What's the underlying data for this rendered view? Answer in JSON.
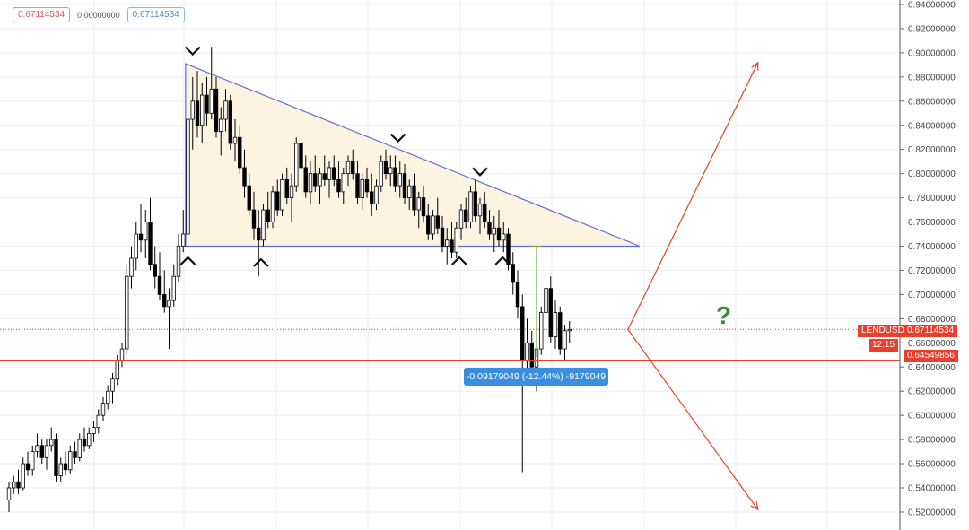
{
  "legend": {
    "value_1": "0.67114534",
    "value_2": "0.00000000",
    "value_3": "0.67114534"
  },
  "price_axis": {
    "symbol_tag": "LENDUSD",
    "last_price_tag": "0.67114534",
    "countdown_tag": "12:15",
    "line_price_tag": "0.64549856"
  },
  "measure_label": "-0.09179049 (-12.44%) -9179049",
  "question_mark": "?",
  "colors": {
    "up": "#ffffff",
    "down": "#000000",
    "outline": "#000000",
    "triangle_stroke": "#5b6fd6",
    "triangle_fill": "#fdf3e1",
    "support_line": "#e8402f",
    "arrows": "#e8402f",
    "question": "#3d8b2f",
    "measure_line": "#6aa84f",
    "tag": "#e8402f",
    "measure_box": "#3a8ee0"
  },
  "chart_data": {
    "type": "candlestick",
    "symbol": "LENDUSD",
    "ylim": [
      0.51,
      0.945
    ],
    "y_ticks": [
      "0.94000000",
      "0.92000000",
      "0.90000000",
      "0.88000000",
      "0.86000000",
      "0.84000000",
      "0.82000000",
      "0.80000000",
      "0.78000000",
      "0.76000000",
      "0.74000000",
      "0.72000000",
      "0.70000000",
      "0.68000000",
      "0.66000000",
      "0.64000000",
      "0.62000000",
      "0.60000000",
      "0.58000000",
      "0.56000000",
      "0.54000000",
      "0.52000000"
    ],
    "grid": true,
    "candles_ohlc": [
      [
        0.53,
        0.545,
        0.52,
        0.54
      ],
      [
        0.54,
        0.55,
        0.535,
        0.545
      ],
      [
        0.545,
        0.555,
        0.535,
        0.54
      ],
      [
        0.54,
        0.565,
        0.538,
        0.56
      ],
      [
        0.56,
        0.57,
        0.55,
        0.555
      ],
      [
        0.555,
        0.575,
        0.55,
        0.57
      ],
      [
        0.57,
        0.585,
        0.565,
        0.575
      ],
      [
        0.575,
        0.58,
        0.56,
        0.565
      ],
      [
        0.565,
        0.58,
        0.555,
        0.575
      ],
      [
        0.575,
        0.59,
        0.57,
        0.58
      ],
      [
        0.58,
        0.585,
        0.545,
        0.55
      ],
      [
        0.55,
        0.565,
        0.545,
        0.56
      ],
      [
        0.56,
        0.57,
        0.55,
        0.555
      ],
      [
        0.555,
        0.575,
        0.552,
        0.57
      ],
      [
        0.57,
        0.578,
        0.56,
        0.565
      ],
      [
        0.565,
        0.585,
        0.562,
        0.58
      ],
      [
        0.58,
        0.59,
        0.57,
        0.575
      ],
      [
        0.575,
        0.59,
        0.572,
        0.585
      ],
      [
        0.585,
        0.595,
        0.578,
        0.59
      ],
      [
        0.59,
        0.605,
        0.585,
        0.6
      ],
      [
        0.6,
        0.615,
        0.595,
        0.61
      ],
      [
        0.61,
        0.625,
        0.605,
        0.62
      ],
      [
        0.62,
        0.635,
        0.61,
        0.63
      ],
      [
        0.63,
        0.65,
        0.625,
        0.645
      ],
      [
        0.645,
        0.66,
        0.64,
        0.655
      ],
      [
        0.655,
        0.725,
        0.65,
        0.715
      ],
      [
        0.715,
        0.74,
        0.705,
        0.73
      ],
      [
        0.73,
        0.76,
        0.72,
        0.75
      ],
      [
        0.75,
        0.775,
        0.735,
        0.745
      ],
      [
        0.745,
        0.77,
        0.73,
        0.76
      ],
      [
        0.76,
        0.78,
        0.72,
        0.725
      ],
      [
        0.725,
        0.74,
        0.705,
        0.715
      ],
      [
        0.715,
        0.735,
        0.695,
        0.7
      ],
      [
        0.7,
        0.72,
        0.685,
        0.69
      ],
      [
        0.69,
        0.705,
        0.655,
        0.695
      ],
      [
        0.695,
        0.725,
        0.69,
        0.715
      ],
      [
        0.715,
        0.75,
        0.71,
        0.74
      ],
      [
        0.74,
        0.77,
        0.735,
        0.75
      ],
      [
        0.75,
        0.86,
        0.745,
        0.845
      ],
      [
        0.845,
        0.88,
        0.82,
        0.86
      ],
      [
        0.86,
        0.885,
        0.83,
        0.84
      ],
      [
        0.84,
        0.875,
        0.825,
        0.865
      ],
      [
        0.865,
        0.88,
        0.84,
        0.85
      ],
      [
        0.85,
        0.905,
        0.845,
        0.87
      ],
      [
        0.87,
        0.88,
        0.83,
        0.835
      ],
      [
        0.835,
        0.855,
        0.815,
        0.845
      ],
      [
        0.845,
        0.87,
        0.835,
        0.86
      ],
      [
        0.86,
        0.865,
        0.82,
        0.825
      ],
      [
        0.825,
        0.845,
        0.81,
        0.83
      ],
      [
        0.83,
        0.84,
        0.8,
        0.805
      ],
      [
        0.805,
        0.82,
        0.78,
        0.79
      ],
      [
        0.79,
        0.8,
        0.765,
        0.77
      ],
      [
        0.77,
        0.785,
        0.745,
        0.755
      ],
      [
        0.755,
        0.77,
        0.715,
        0.745
      ],
      [
        0.745,
        0.775,
        0.74,
        0.77
      ],
      [
        0.77,
        0.785,
        0.755,
        0.76
      ],
      [
        0.76,
        0.79,
        0.755,
        0.785
      ],
      [
        0.785,
        0.795,
        0.765,
        0.77
      ],
      [
        0.77,
        0.8,
        0.765,
        0.795
      ],
      [
        0.795,
        0.805,
        0.775,
        0.78
      ],
      [
        0.78,
        0.8,
        0.76,
        0.79
      ],
      [
        0.79,
        0.83,
        0.785,
        0.825
      ],
      [
        0.825,
        0.845,
        0.8,
        0.805
      ],
      [
        0.805,
        0.815,
        0.78,
        0.785
      ],
      [
        0.785,
        0.81,
        0.775,
        0.8
      ],
      [
        0.8,
        0.815,
        0.785,
        0.79
      ],
      [
        0.79,
        0.805,
        0.775,
        0.8
      ],
      [
        0.8,
        0.815,
        0.79,
        0.795
      ],
      [
        0.795,
        0.81,
        0.78,
        0.805
      ],
      [
        0.805,
        0.815,
        0.79,
        0.795
      ],
      [
        0.795,
        0.81,
        0.78,
        0.785
      ],
      [
        0.785,
        0.805,
        0.775,
        0.8
      ],
      [
        0.8,
        0.815,
        0.79,
        0.81
      ],
      [
        0.81,
        0.82,
        0.795,
        0.8
      ],
      [
        0.8,
        0.81,
        0.775,
        0.78
      ],
      [
        0.78,
        0.8,
        0.77,
        0.795
      ],
      [
        0.795,
        0.805,
        0.78,
        0.785
      ],
      [
        0.785,
        0.8,
        0.765,
        0.775
      ],
      [
        0.775,
        0.795,
        0.77,
        0.79
      ],
      [
        0.79,
        0.815,
        0.785,
        0.81
      ],
      [
        0.81,
        0.82,
        0.795,
        0.8
      ],
      [
        0.8,
        0.815,
        0.79,
        0.805
      ],
      [
        0.805,
        0.815,
        0.785,
        0.79
      ],
      [
        0.79,
        0.81,
        0.78,
        0.8
      ],
      [
        0.8,
        0.808,
        0.775,
        0.78
      ],
      [
        0.78,
        0.795,
        0.77,
        0.79
      ],
      [
        0.79,
        0.8,
        0.765,
        0.77
      ],
      [
        0.77,
        0.785,
        0.755,
        0.78
      ],
      [
        0.78,
        0.79,
        0.76,
        0.765
      ],
      [
        0.765,
        0.775,
        0.745,
        0.75
      ],
      [
        0.75,
        0.77,
        0.745,
        0.765
      ],
      [
        0.765,
        0.78,
        0.75,
        0.755
      ],
      [
        0.755,
        0.765,
        0.735,
        0.74
      ],
      [
        0.74,
        0.755,
        0.725,
        0.745
      ],
      [
        0.745,
        0.76,
        0.73,
        0.735
      ],
      [
        0.735,
        0.76,
        0.73,
        0.755
      ],
      [
        0.755,
        0.775,
        0.745,
        0.77
      ],
      [
        0.77,
        0.78,
        0.755,
        0.76
      ],
      [
        0.76,
        0.79,
        0.755,
        0.785
      ],
      [
        0.785,
        0.795,
        0.76,
        0.765
      ],
      [
        0.765,
        0.78,
        0.75,
        0.775
      ],
      [
        0.775,
        0.785,
        0.755,
        0.76
      ],
      [
        0.76,
        0.77,
        0.745,
        0.75
      ],
      [
        0.75,
        0.765,
        0.735,
        0.755
      ],
      [
        0.755,
        0.77,
        0.74,
        0.745
      ],
      [
        0.745,
        0.76,
        0.735,
        0.75
      ],
      [
        0.75,
        0.755,
        0.72,
        0.725
      ],
      [
        0.725,
        0.735,
        0.7,
        0.71
      ],
      [
        0.71,
        0.72,
        0.68,
        0.69
      ],
      [
        0.69,
        0.7,
        0.553,
        0.645
      ],
      [
        0.645,
        0.68,
        0.63,
        0.66
      ],
      [
        0.66,
        0.67,
        0.625,
        0.64
      ],
      [
        0.64,
        0.665,
        0.62,
        0.655
      ],
      [
        0.655,
        0.69,
        0.65,
        0.685
      ],
      [
        0.685,
        0.715,
        0.675,
        0.705
      ],
      [
        0.705,
        0.715,
        0.66,
        0.665
      ],
      [
        0.665,
        0.695,
        0.655,
        0.685
      ],
      [
        0.685,
        0.69,
        0.65,
        0.655
      ],
      [
        0.655,
        0.675,
        0.645,
        0.67
      ],
      [
        0.67,
        0.678,
        0.66,
        0.6711
      ]
    ],
    "last_price": 0.67114534,
    "horizontal_line_price": 0.64549856,
    "annotations": {
      "descending_triangle": [
        [
          37.5,
          0.891
        ],
        [
          133.9,
          0.74
        ],
        [
          37.5,
          0.74
        ]
      ],
      "arrow_up": {
        "from": [
          131.4,
          0.6711
        ],
        "to": [
          159,
          0.892
        ]
      },
      "arrow_down": {
        "from": [
          131.4,
          0.6711
        ],
        "to": [
          159,
          0.522
        ]
      },
      "question_mark_at": [
        151.4,
        0.68
      ],
      "top_marks": [
        [
          39,
          0.901
        ],
        [
          82.6,
          0.829
        ],
        [
          100,
          0.801
        ]
      ],
      "bottom_marks": [
        [
          38,
          0.7285
        ],
        [
          53.5,
          0.727
        ],
        [
          95.6,
          0.7285
        ],
        [
          104.8,
          0.7285
        ]
      ],
      "measure": {
        "index": 112,
        "from": 0.74,
        "to": 0.6482
      }
    }
  }
}
